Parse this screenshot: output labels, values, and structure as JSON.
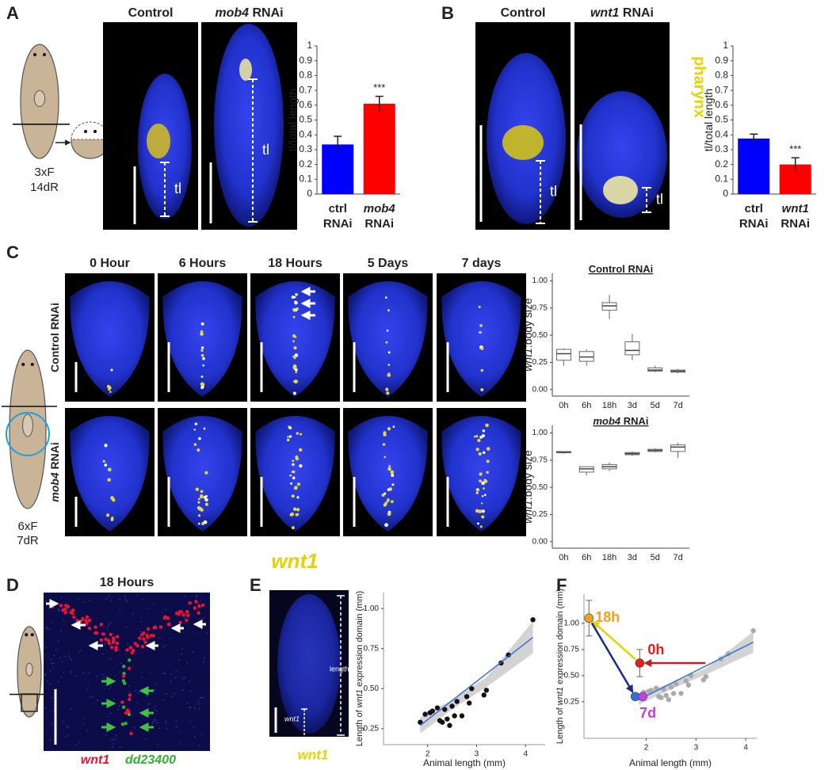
{
  "panel_a": {
    "letter": "A",
    "schematic": [
      "3xF",
      "14dR"
    ],
    "images": [
      {
        "title": "Control",
        "measure": "tl"
      },
      {
        "title": [
          {
            "italic": "mob4"
          },
          " RNAi"
        ],
        "measure": "tl"
      }
    ],
    "chart": {
      "type": "bar",
      "ylabel": "tl/total length",
      "ylim": [
        0,
        1
      ],
      "yticks": [
        0,
        0.1,
        0.2,
        0.3,
        0.4,
        0.5,
        0.6,
        0.7,
        0.8,
        0.9,
        1
      ],
      "categories": [
        [
          "ctrl",
          "RNAi"
        ],
        [
          {
            "italic": "mob4"
          },
          "RNAi"
        ]
      ],
      "values": [
        0.335,
        0.61
      ],
      "errors": [
        0.055,
        0.05
      ],
      "colors": [
        "#0000ff",
        "#ff0000"
      ],
      "value_annotations": [
        null,
        "***"
      ]
    }
  },
  "panel_b": {
    "letter": "B",
    "images": [
      {
        "title": "Control",
        "measure": "tl"
      },
      {
        "title": [
          {
            "italic": "wnt1"
          },
          " RNAi"
        ],
        "measure": "tl"
      }
    ],
    "stain_label": "pharynx",
    "stain_color": "#e6d200",
    "chart": {
      "type": "bar",
      "ylabel": "tl/total length",
      "ylim": [
        0,
        1
      ],
      "yticks": [
        0,
        0.1,
        0.2,
        0.3,
        0.4,
        0.5,
        0.6,
        0.7,
        0.8,
        0.9,
        1
      ],
      "categories": [
        [
          "ctrl",
          "RNAi"
        ],
        [
          {
            "italic": "wnt1"
          },
          "RNAi"
        ]
      ],
      "values": [
        0.375,
        0.2
      ],
      "errors": [
        0.03,
        0.045
      ],
      "colors": [
        "#0000ff",
        "#ff0000"
      ],
      "value_annotations": [
        null,
        "***"
      ]
    }
  },
  "panel_c": {
    "letter": "C",
    "schematic": [
      "6xF",
      "7dR"
    ],
    "timepoints": [
      "0 Hour",
      "6 Hours",
      "18 Hours",
      "5 Days",
      "7 days"
    ],
    "rows": [
      "Control RNAi",
      [
        {
          "italic": "mob4"
        },
        " RNAi"
      ]
    ],
    "stain_label": "wnt1",
    "stain_color": "#e6d200",
    "charts": [
      {
        "type": "box",
        "title": "Control RNAi",
        "ylabel": [
          {
            "italic": "wnt1"
          },
          ":body size"
        ],
        "ylim": [
          -0.06,
          1.07
        ],
        "yticks": [
          {
            "value": 0,
            "label": "0.00"
          },
          {
            "value": 0.25,
            "label": "0.25"
          },
          {
            "value": 0.5,
            "label": "0.50"
          },
          {
            "value": 0.75,
            "label": "0.75"
          },
          {
            "value": 1,
            "label": "1.00"
          }
        ],
        "categories": [
          "0h",
          "6h",
          "18h",
          "3d",
          "5d",
          "7d"
        ],
        "min": [
          0.22,
          0.22,
          0.65,
          0.27,
          0.16,
          0.15
        ],
        "q1": [
          0.27,
          0.26,
          0.73,
          0.32,
          0.17,
          0.16
        ],
        "median": [
          0.33,
          0.3,
          0.77,
          0.36,
          0.18,
          0.17
        ],
        "q3": [
          0.37,
          0.35,
          0.8,
          0.44,
          0.2,
          0.18
        ],
        "max": [
          0.38,
          0.37,
          0.87,
          0.51,
          0.22,
          0.19
        ]
      },
      {
        "type": "box",
        "title": [
          {
            "italic": "mob4"
          },
          " RNAi"
        ],
        "ylabel": [
          {
            "italic": "wnt1"
          },
          ":body size"
        ],
        "ylim": [
          -0.06,
          1.07
        ],
        "yticks": [
          {
            "value": 0,
            "label": "0.00"
          },
          {
            "value": 0.25,
            "label": "0.25"
          },
          {
            "value": 0.5,
            "label": "0.50"
          },
          {
            "value": 0.75,
            "label": "0.75"
          },
          {
            "value": 1,
            "label": "1.00"
          }
        ],
        "categories": [
          "0h",
          "6h",
          "18h",
          "3d",
          "5d",
          "7d"
        ],
        "min": [
          0.81,
          0.61,
          0.65,
          0.79,
          0.82,
          0.77
        ],
        "q1": [
          0.82,
          0.64,
          0.67,
          0.8,
          0.83,
          0.83
        ],
        "median": [
          0.82,
          0.67,
          0.69,
          0.81,
          0.84,
          0.87
        ],
        "q3": [
          0.83,
          0.69,
          0.71,
          0.82,
          0.85,
          0.89
        ],
        "max": [
          0.83,
          0.69,
          0.73,
          0.83,
          0.86,
          0.91
        ]
      }
    ]
  },
  "panel_d": {
    "letter": "D",
    "title": "18 Hours",
    "stains": [
      {
        "name": "wnt1",
        "color": "#ee1133"
      },
      {
        "name": "dd23400",
        "color": "#33b033"
      }
    ]
  },
  "panel_e": {
    "letter": "E",
    "image_labels": [
      "length",
      "wnt1"
    ],
    "stain_label": "wnt1",
    "stain_color": "#e6d200",
    "chart": {
      "type": "scatter",
      "xlabel": "Animal length (mm)",
      "ylabel": [
        "Length of ",
        {
          "italic": "wnt1"
        },
        " expression domain (mm)"
      ],
      "xlim": [
        1.1,
        4.4
      ],
      "ylim": [
        0.15,
        1.1
      ],
      "xticks": [
        2,
        3,
        4
      ],
      "yticks": [
        {
          "value": 0.25,
          "label": "0.25"
        },
        {
          "value": 0.5,
          "label": "0.50"
        },
        {
          "value": 0.75,
          "label": "0.75"
        },
        {
          "value": 1,
          "label": "1.00"
        }
      ],
      "x": [
        1.85,
        1.95,
        2.05,
        2.1,
        2.2,
        2.25,
        2.3,
        2.35,
        2.4,
        2.45,
        2.5,
        2.55,
        2.6,
        2.7,
        2.8,
        2.85,
        2.9,
        3.15,
        3.2,
        3.5,
        3.65,
        4.15
      ],
      "y": [
        0.29,
        0.34,
        0.35,
        0.36,
        0.38,
        0.3,
        0.29,
        0.37,
        0.31,
        0.27,
        0.39,
        0.33,
        0.42,
        0.33,
        0.45,
        0.41,
        0.5,
        0.46,
        0.49,
        0.66,
        0.71,
        0.93
      ],
      "color": "#111111",
      "fit": {
        "x": [
          1.85,
          4.15
        ],
        "y": [
          0.27,
          0.82
        ],
        "color": "#3a6fd8"
      },
      "band": {
        "x": [
          1.85,
          2.5,
          3.2,
          4.15
        ],
        "lower": [
          0.22,
          0.37,
          0.51,
          0.72
        ],
        "upper": [
          0.32,
          0.43,
          0.57,
          0.92
        ],
        "color": "#c8c8c8"
      }
    }
  },
  "panel_f": {
    "letter": "F",
    "chart": {
      "type": "scatter",
      "xlabel": "Animal length (mm)",
      "ylabel": [
        "Length of ",
        {
          "italic": "wnt1"
        },
        " expression domain (mm)"
      ],
      "xlim": [
        0.75,
        4.22
      ],
      "ylim": [
        -0.1,
        1.28
      ],
      "xticks": [
        2,
        3,
        4
      ],
      "yticks": [
        {
          "value": 0.25,
          "label": "0.25"
        },
        {
          "value": 0.5,
          "label": "0.50"
        },
        {
          "value": 0.75,
          "label": "0.75"
        },
        {
          "value": 1,
          "label": "1.00"
        }
      ],
      "x": [
        1.85,
        1.95,
        2.05,
        2.1,
        2.2,
        2.25,
        2.3,
        2.35,
        2.4,
        2.45,
        2.5,
        2.55,
        2.6,
        2.7,
        2.8,
        2.85,
        2.9,
        3.15,
        3.2,
        3.5,
        3.65,
        4.15
      ],
      "y": [
        0.29,
        0.34,
        0.35,
        0.36,
        0.38,
        0.3,
        0.29,
        0.37,
        0.31,
        0.27,
        0.39,
        0.33,
        0.42,
        0.33,
        0.45,
        0.41,
        0.5,
        0.46,
        0.49,
        0.66,
        0.71,
        0.93
      ],
      "color": "#aaaaaa",
      "fit": {
        "x": [
          1.85,
          4.15
        ],
        "y": [
          0.27,
          0.82
        ],
        "color": "#3a6fd8"
      },
      "band": {
        "x": [
          1.85,
          2.5,
          3.2,
          4.15
        ],
        "lower": [
          0.22,
          0.37,
          0.51,
          0.72
        ],
        "upper": [
          0.32,
          0.43,
          0.57,
          0.92
        ],
        "color": "#c8c8c8"
      },
      "highlights": [
        {
          "label": "18h",
          "x": 0.85,
          "y": 1.05,
          "error": 0.17,
          "color": "#f0a020"
        },
        {
          "label": "0h",
          "x": 1.87,
          "y": 0.62,
          "error": 0.13,
          "color": "#e02020"
        },
        {
          "x": 1.78,
          "y": 0.3,
          "color": "#3070e0"
        },
        {
          "label": "7d",
          "x": 1.93,
          "y": 0.3,
          "color": "#c040e0"
        }
      ]
    }
  }
}
